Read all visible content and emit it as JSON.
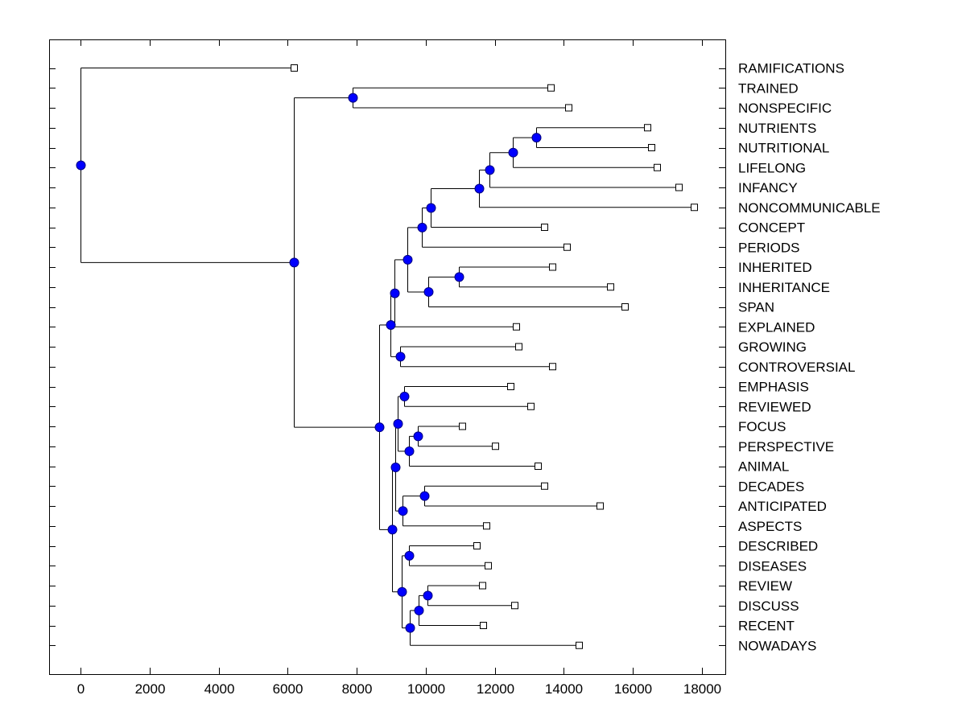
{
  "chart_data": {
    "type": "dendrogram",
    "title": "",
    "xlabel": "",
    "ylabel": "",
    "xlim": [
      -900,
      18700
    ],
    "xticks": [
      0,
      2000,
      4000,
      6000,
      8000,
      10000,
      12000,
      14000,
      16000,
      18000
    ],
    "xtick_labels": [
      "0",
      "2000",
      "4000",
      "6000",
      "8000",
      "10000",
      "12000",
      "14000",
      "16000",
      "18000"
    ],
    "grid": false,
    "leaf_order": [
      "RAMIFICATIONS",
      "TRAINED",
      "NONSPECIFIC",
      "NUTRIENTS",
      "NUTRITIONAL",
      "LIFELONG",
      "INFANCY",
      "NONCOMMUNICABLE",
      "CONCEPT",
      "PERIODS",
      "INHERITED",
      "INHERITANCE",
      "SPAN",
      "EXPLAINED",
      "GROWING",
      "CONTROVERSIAL",
      "EMPHASIS",
      "REVIEWED",
      "FOCUS",
      "PERSPECTIVE",
      "ANIMAL",
      "DECADES",
      "ANTICIPATED",
      "ASPECTS",
      "DESCRIBED",
      "DISEASES",
      "REVIEW",
      "DISCUSS",
      "RECENT",
      "NOWADAYS"
    ],
    "colors": {
      "node_fill": "#0000ff",
      "node_stroke": "#000080",
      "line": "#000000",
      "leaf_fill": "#ffffff"
    },
    "tree": {
      "value": 0,
      "children": [
        {
          "leaf": "RAMIFICATIONS",
          "value": 6180
        },
        {
          "value": 6180,
          "children": [
            {
              "value": 7880,
              "children": [
                {
                  "leaf": "TRAINED",
                  "value": 13615
                },
                {
                  "leaf": "NONSPECIFIC",
                  "value": 14130
                }
              ]
            },
            {
              "value": 8650,
              "children": [
                {
                  "value": 8975,
                  "children": [
                    {
                      "value": 9095,
                      "children": [
                        {
                          "value": 9465,
                          "children": [
                            {
                              "value": 9885,
                              "children": [
                                {
                                  "value": 10140,
                                  "children": [
                                    {
                                      "value": 11540,
                                      "children": [
                                        {
                                          "value": 11845,
                                          "children": [
                                            {
                                              "value": 12520,
                                              "children": [
                                                {
                                                  "value": 13195,
                                                  "children": [
                                                    {
                                                      "leaf": "NUTRIENTS",
                                                      "value": 16415
                                                    },
                                                    {
                                                      "leaf": "NUTRITIONAL",
                                                      "value": 16530
                                                    }
                                                  ]
                                                },
                                                {
                                                  "leaf": "LIFELONG",
                                                  "value": 16695
                                                }
                                              ]
                                            },
                                            {
                                              "leaf": "INFANCY",
                                              "value": 17325
                                            }
                                          ]
                                        },
                                        {
                                          "leaf": "NONCOMMUNICABLE",
                                          "value": 17765
                                        }
                                      ]
                                    },
                                    {
                                      "leaf": "CONCEPT",
                                      "value": 13430
                                    }
                                  ]
                                },
                                {
                                  "leaf": "PERIODS",
                                  "value": 14080
                                }
                              ]
                            },
                            {
                              "value": 10070,
                              "children": [
                                {
                                  "value": 10960,
                                  "children": [
                                    {
                                      "leaf": "INHERITED",
                                      "value": 13665
                                    },
                                    {
                                      "leaf": "INHERITANCE",
                                      "value": 15340
                                    }
                                  ]
                                },
                                {
                                  "leaf": "SPAN",
                                  "value": 15760
                                }
                              ]
                            }
                          ]
                        },
                        {
                          "leaf": "EXPLAINED",
                          "value": 12615
                        }
                      ]
                    },
                    {
                      "value": 9255,
                      "children": [
                        {
                          "leaf": "GROWING",
                          "value": 12685
                        },
                        {
                          "leaf": "CONTROVERSIAL",
                          "value": 13665
                        }
                      ]
                    }
                  ]
                },
                {
                  "value": 9025,
                  "children": [
                    {
                      "value": 9115,
                      "children": [
                        {
                          "value": 9185,
                          "children": [
                            {
                              "value": 9375,
                              "children": [
                                {
                                  "leaf": "EMPHASIS",
                                  "value": 12450
                                },
                                {
                                  "leaf": "REVIEWED",
                                  "value": 13035
                                }
                              ]
                            },
                            {
                              "value": 9510,
                              "children": [
                                {
                                  "value": 9770,
                                  "children": [
                                    {
                                      "leaf": "FOCUS",
                                      "value": 11050
                                    },
                                    {
                                      "leaf": "PERSPECTIVE",
                                      "value": 12010
                                    }
                                  ]
                                },
                                {
                                  "leaf": "ANIMAL",
                                  "value": 13245
                                }
                              ]
                            }
                          ]
                        },
                        {
                          "value": 9325,
                          "children": [
                            {
                              "value": 9955,
                              "children": [
                                {
                                  "leaf": "DECADES",
                                  "value": 13430
                                },
                                {
                                  "leaf": "ANTICIPATED",
                                  "value": 15040
                                }
                              ]
                            },
                            {
                              "leaf": "ASPECTS",
                              "value": 11750
                            }
                          ]
                        }
                      ]
                    },
                    {
                      "value": 9305,
                      "children": [
                        {
                          "value": 9510,
                          "children": [
                            {
                              "leaf": "DESCRIBED",
                              "value": 11470
                            },
                            {
                              "leaf": "DISEASES",
                              "value": 11800
                            }
                          ]
                        },
                        {
                          "value": 9535,
                          "children": [
                            {
                              "value": 9795,
                              "children": [
                                {
                                  "value": 10050,
                                  "children": [
                                    {
                                      "leaf": "REVIEW",
                                      "value": 11635
                                    },
                                    {
                                      "leaf": "DISCUSS",
                                      "value": 12565
                                    }
                                  ]
                                },
                                {
                                  "leaf": "RECENT",
                                  "value": 11660
                                }
                              ]
                            },
                            {
                              "leaf": "NOWADAYS",
                              "value": 14430
                            }
                          ]
                        }
                      ]
                    }
                  ]
                }
              ]
            }
          ]
        }
      ]
    }
  }
}
